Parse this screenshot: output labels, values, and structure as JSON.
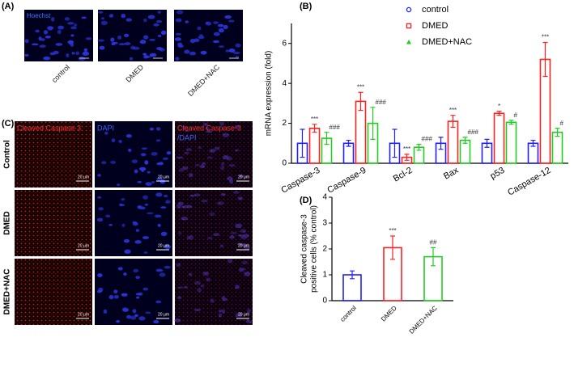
{
  "panel_labels": [
    "(A)",
    "(B)",
    "(C)",
    "(D)"
  ],
  "panel_a": {
    "stain_label": "Hoechst",
    "groups": [
      "control",
      "DMED",
      "DMED+NAC"
    ]
  },
  "panel_c": {
    "columns": [
      "Cleaved Caspase-3",
      "DAPI",
      "Cleaved Caspase-3",
      "/DAPI"
    ],
    "rows": [
      "Control",
      "DMED",
      "DMED+NAC"
    ],
    "scale_bar_label": "20 μm"
  },
  "chart_data": [
    {
      "type": "bar",
      "ylabel": "mRNA expression  (fold)",
      "categories": [
        "Caspase-3",
        "Caspase-9",
        "Bcl-2",
        "Bax",
        "p53",
        "Caspase-12"
      ],
      "series": [
        {
          "name": "control",
          "color": "#1f1fff",
          "marker": "circle",
          "values": [
            1.0,
            1.0,
            1.0,
            1.0,
            1.0,
            1.0
          ],
          "errors": [
            0.7,
            0.15,
            0.7,
            0.3,
            0.2,
            0.15
          ]
        },
        {
          "name": "DMED",
          "color": "#ff2020",
          "marker": "square",
          "values": [
            1.75,
            3.1,
            0.3,
            2.1,
            2.5,
            5.2
          ],
          "errors": [
            0.2,
            0.45,
            0.15,
            0.3,
            0.1,
            0.85
          ],
          "significance": [
            "***",
            "***",
            "***",
            "***",
            "*",
            "***"
          ]
        },
        {
          "name": "DMED+NAC",
          "color": "#22cc22",
          "marker": "triangle",
          "values": [
            1.25,
            2.0,
            0.8,
            1.15,
            2.05,
            1.55
          ],
          "errors": [
            0.3,
            0.8,
            0.15,
            0.15,
            0.1,
            0.2
          ],
          "significance": [
            "###",
            "###",
            "###",
            "###",
            "#",
            "#"
          ]
        }
      ],
      "ylim": [
        0,
        7
      ],
      "yticks": [
        0,
        2,
        4,
        6
      ],
      "legend": "top-right"
    },
    {
      "type": "bar",
      "ylabel": [
        "Cleaved caspase-3",
        "positive cells (% control)"
      ],
      "categories": [
        "control",
        "DMED",
        "DMED+NAC"
      ],
      "values": [
        1.0,
        2.05,
        1.7
      ],
      "errors": [
        0.15,
        0.45,
        0.35
      ],
      "colors": [
        "#1f1fff",
        "#ff2020",
        "#22cc22"
      ],
      "significance": [
        null,
        "***",
        "##"
      ],
      "ylim": [
        0,
        4
      ],
      "yticks": [
        0,
        1,
        2,
        3,
        4
      ]
    }
  ]
}
